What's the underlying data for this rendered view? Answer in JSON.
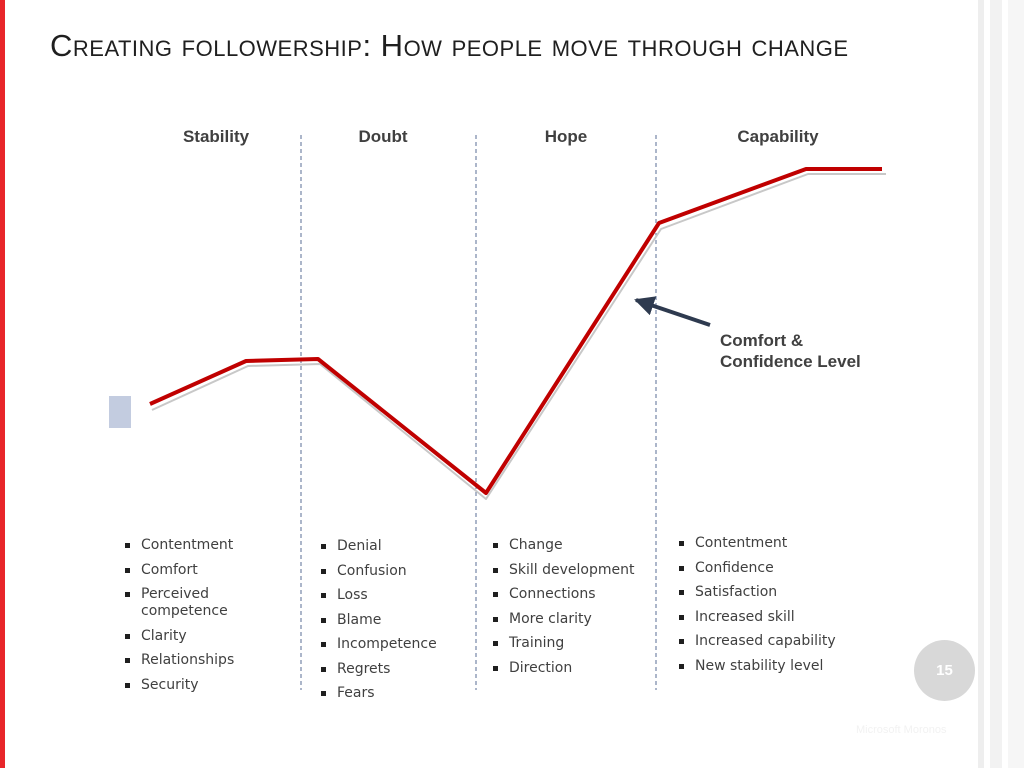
{
  "slide": {
    "title": "Creating followership: How people move through change",
    "page_number": "15",
    "footer": "Microsoft Moronos"
  },
  "phases": [
    {
      "name": "Stability",
      "items": [
        "Contentment",
        "Comfort",
        "Perceived competence",
        "Clarity",
        "Relationships",
        "Security"
      ]
    },
    {
      "name": "Doubt",
      "items": [
        "Denial",
        "Confusion",
        "Loss",
        "Blame",
        "Incompetence",
        "Regrets",
        "Fears"
      ]
    },
    {
      "name": "Hope",
      "items": [
        "Change",
        "Skill development",
        "Connections",
        "More clarity",
        "Training",
        "Direction"
      ]
    },
    {
      "name": "Capability",
      "items": [
        "Contentment",
        "Confidence",
        "Satisfaction",
        "Increased skill",
        "Increased capability",
        "New stability level"
      ]
    }
  ],
  "curve": {
    "label_line1": "Comfort &",
    "label_line2": "Confidence Level",
    "color": "#c00000",
    "arrow_color": "#2e3a4f"
  },
  "colors": {
    "accent": "#e8262a",
    "divider": "#5a6e96",
    "text": "#404040"
  }
}
